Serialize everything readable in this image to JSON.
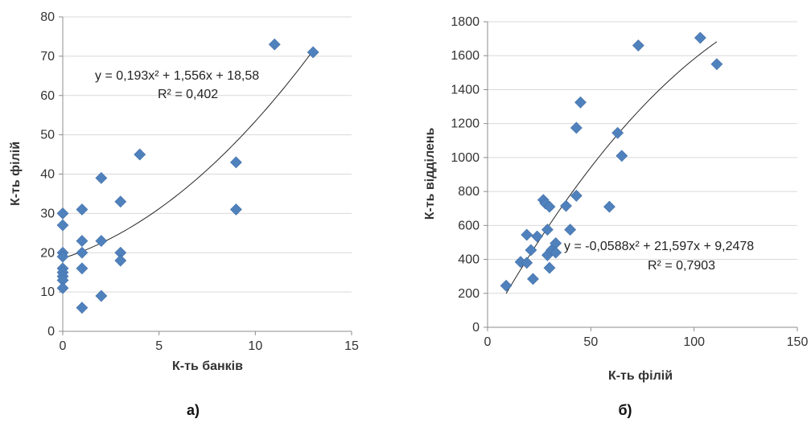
{
  "chart_data": [
    {
      "type": "scatter",
      "panel_label": "а)",
      "xlabel": "К-ть банків",
      "ylabel": "К-ть філій",
      "xlim": [
        0,
        15
      ],
      "ylim": [
        0,
        80
      ],
      "xticks": [
        0,
        5,
        10,
        15
      ],
      "yticks": [
        0,
        10,
        20,
        30,
        40,
        50,
        60,
        70,
        80
      ],
      "grid": "horizontal",
      "color": "#4f81bd",
      "trendline": {
        "type": "polynomial-2",
        "coefficients": [
          0.193,
          1.556,
          18.58
        ],
        "equation": "y = 0,193x² + 1,556x + 18,58",
        "r2": "R² = 0,402"
      },
      "points": [
        [
          0,
          30
        ],
        [
          0,
          27
        ],
        [
          0,
          20
        ],
        [
          0,
          19
        ],
        [
          0,
          16
        ],
        [
          0,
          15
        ],
        [
          0,
          14
        ],
        [
          0,
          13
        ],
        [
          0,
          11
        ],
        [
          1,
          31
        ],
        [
          1,
          23
        ],
        [
          1,
          20
        ],
        [
          1,
          16
        ],
        [
          1,
          6
        ],
        [
          2,
          39
        ],
        [
          2,
          23
        ],
        [
          2,
          9
        ],
        [
          3,
          33
        ],
        [
          3,
          20
        ],
        [
          3,
          18
        ],
        [
          4,
          45
        ],
        [
          9,
          43
        ],
        [
          9,
          31
        ],
        [
          11,
          73
        ],
        [
          13,
          71
        ]
      ]
    },
    {
      "type": "scatter",
      "panel_label": "б)",
      "xlabel": "К-ть філій",
      "ylabel": "К-ть відділень",
      "xlim": [
        0,
        150
      ],
      "ylim": [
        0,
        1800
      ],
      "xticks": [
        0,
        50,
        100,
        150
      ],
      "yticks": [
        0,
        200,
        400,
        600,
        800,
        1000,
        1200,
        1400,
        1600,
        1800
      ],
      "grid": "horizontal",
      "color": "#4f81bd",
      "trendline": {
        "type": "polynomial-2",
        "coefficients": [
          -0.0588,
          21.597,
          9.2478
        ],
        "equation": "y = -0,0588x² + 21,597x + 9,2478",
        "r2": "R² = 0,7903"
      },
      "points": [
        [
          9,
          245
        ],
        [
          16,
          385
        ],
        [
          19,
          545
        ],
        [
          19,
          380
        ],
        [
          21,
          455
        ],
        [
          22,
          285
        ],
        [
          24,
          535
        ],
        [
          27,
          750
        ],
        [
          28,
          730
        ],
        [
          29,
          575
        ],
        [
          29,
          425
        ],
        [
          30,
          710
        ],
        [
          30,
          350
        ],
        [
          31,
          455
        ],
        [
          33,
          495
        ],
        [
          33,
          440
        ],
        [
          38,
          715
        ],
        [
          40,
          575
        ],
        [
          43,
          775
        ],
        [
          43,
          1175
        ],
        [
          45,
          1325
        ],
        [
          59,
          710
        ],
        [
          63,
          1145
        ],
        [
          65,
          1010
        ],
        [
          73,
          1660
        ],
        [
          103,
          1705
        ],
        [
          111,
          1550
        ]
      ]
    }
  ]
}
